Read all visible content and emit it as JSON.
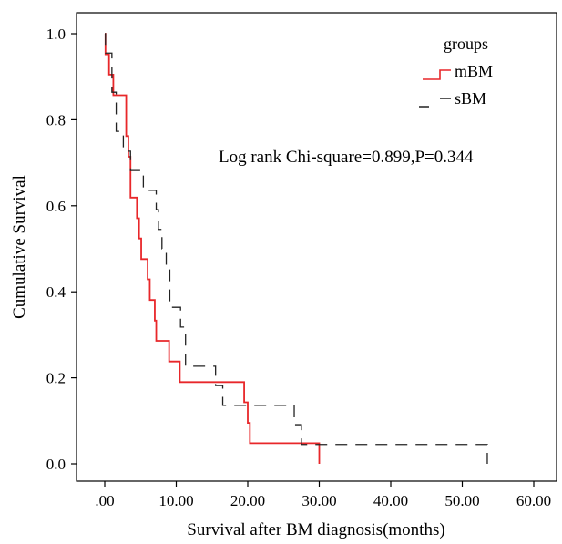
{
  "chart_data": {
    "type": "line",
    "subtype": "kaplan-meier step",
    "title": "",
    "xlabel": "Survival after BM diagnosis(months)",
    "ylabel": "Cumulative Survival",
    "xlim": [
      0,
      60
    ],
    "ylim": [
      0,
      1
    ],
    "x_ticks": [
      0,
      10,
      20,
      30,
      40,
      50,
      60
    ],
    "x_tick_labels": [
      ".00",
      "10.00",
      "20.00",
      "30.00",
      "40.00",
      "50.00",
      "60.00"
    ],
    "y_ticks": [
      0.0,
      0.2,
      0.4,
      0.6,
      0.8,
      1.0
    ],
    "y_tick_labels": [
      "0.0",
      "0.2",
      "0.4",
      "0.6",
      "0.8",
      "1.0"
    ],
    "grid": false,
    "legend": {
      "title": "groups",
      "placement": "top-right"
    },
    "annotation": "Log rank Chi-square=0.899,P=0.344",
    "series": [
      {
        "name": "mBM",
        "color": "#e8272a",
        "dash": "solid",
        "points": [
          [
            0,
            1.0
          ],
          [
            0.1,
            0.952
          ],
          [
            0.6,
            0.905
          ],
          [
            1.2,
            0.857
          ],
          [
            3.0,
            0.762
          ],
          [
            3.3,
            0.714
          ],
          [
            3.6,
            0.619
          ],
          [
            4.5,
            0.571
          ],
          [
            4.8,
            0.524
          ],
          [
            5.1,
            0.476
          ],
          [
            6.0,
            0.429
          ],
          [
            6.3,
            0.381
          ],
          [
            7.0,
            0.333
          ],
          [
            7.2,
            0.286
          ],
          [
            9.0,
            0.238
          ],
          [
            10.5,
            0.19
          ],
          [
            19.5,
            0.143
          ],
          [
            20.0,
            0.095
          ],
          [
            20.3,
            0.048
          ],
          [
            30.0,
            0.0
          ]
        ]
      },
      {
        "name": "sBM",
        "color": "#222222",
        "dash": "dashed",
        "points": [
          [
            0,
            1.0
          ],
          [
            0.1,
            0.955
          ],
          [
            1.0,
            0.864
          ],
          [
            1.6,
            0.773
          ],
          [
            2.6,
            0.727
          ],
          [
            3.6,
            0.682
          ],
          [
            5.4,
            0.636
          ],
          [
            7.2,
            0.591
          ],
          [
            7.5,
            0.545
          ],
          [
            8.0,
            0.5
          ],
          [
            8.6,
            0.455
          ],
          [
            9.1,
            0.364
          ],
          [
            10.6,
            0.318
          ],
          [
            11.3,
            0.227
          ],
          [
            15.5,
            0.182
          ],
          [
            16.5,
            0.136
          ],
          [
            26.5,
            0.091
          ],
          [
            27.5,
            0.045
          ],
          [
            53.5,
            0.0
          ]
        ]
      }
    ]
  }
}
